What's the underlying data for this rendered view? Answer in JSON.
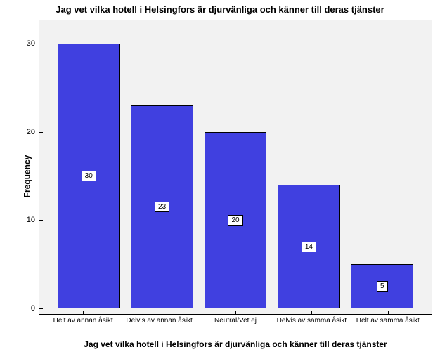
{
  "chart": {
    "type": "bar",
    "title": "Jag vet vilka hotell i Helsingfors är djurvänliga och känner till deras tjänster",
    "x_axis_title": "Jag vet vilka hotell i Helsingfors är djurvänliga och känner till deras tjänster",
    "y_axis_title": "Frequency",
    "categories": [
      "Helt av annan åsikt",
      "Delvis av annan åsikt",
      "Neutral/Vet ej",
      "Delvis av samma åsikt",
      "Helt av samma åsikt"
    ],
    "values": [
      30,
      23,
      20,
      14,
      5
    ],
    "bar_color": "#4040e0",
    "bar_border_color": "#000000",
    "plot_background_color": "#f2f2f2",
    "page_background_color": "#ffffff",
    "text_color": "#000000",
    "value_label_bg": "#ffffff",
    "value_label_border": "#000000",
    "ylim": [
      0,
      32
    ],
    "yticks": [
      0,
      10,
      20,
      30
    ],
    "title_fontsize": 13,
    "axis_title_fontsize": 12,
    "tick_label_fontsize": 11,
    "category_label_fontsize": 10,
    "value_label_fontsize": 10,
    "bar_width_ratio": 0.82
  }
}
